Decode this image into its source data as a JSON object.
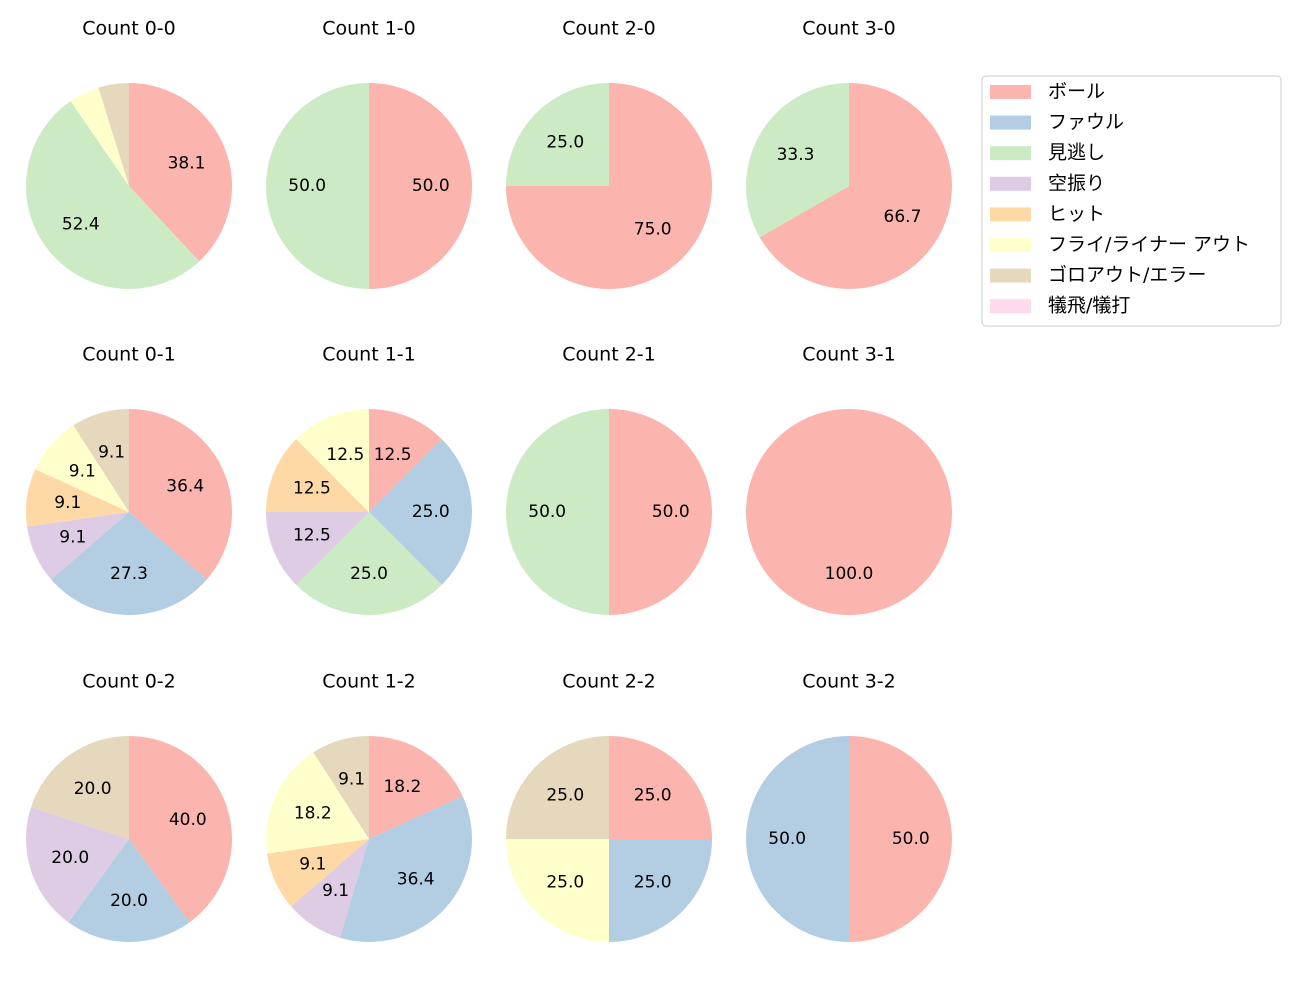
{
  "legend": {
    "labels": [
      "ボール",
      "ファウル",
      "見逃し",
      "空振り",
      "ヒット",
      "フライ/ライナー アウト",
      "ゴロアウト/エラー",
      "犠飛/犠打"
    ],
    "colors": [
      "#fbb4ae",
      "#b3cde3",
      "#ccebc5",
      "#decbe4",
      "#fed9a6",
      "#ffffcc",
      "#e5d8bd",
      "#fddaec"
    ]
  },
  "chart_data": [
    {
      "type": "pie",
      "title": "Count 0-0",
      "values": [
        38.1,
        0,
        52.4,
        0,
        0,
        4.8,
        4.8,
        0
      ],
      "value_labels": [
        "38.1",
        null,
        "52.4",
        null,
        null,
        null,
        null,
        null
      ]
    },
    {
      "type": "pie",
      "title": "Count 1-0",
      "values": [
        50,
        0,
        50,
        0,
        0,
        0,
        0,
        0
      ],
      "value_labels": [
        "50.0",
        null,
        "50.0",
        null,
        null,
        null,
        null,
        null
      ]
    },
    {
      "type": "pie",
      "title": "Count 2-0",
      "values": [
        75,
        0,
        25,
        0,
        0,
        0,
        0,
        0
      ],
      "value_labels": [
        "75.0",
        null,
        "25.0",
        null,
        null,
        null,
        null,
        null
      ]
    },
    {
      "type": "pie",
      "title": "Count 3-0",
      "values": [
        66.7,
        0,
        33.3,
        0,
        0,
        0,
        0,
        0
      ],
      "value_labels": [
        "66.7",
        null,
        "33.3",
        null,
        null,
        null,
        null,
        null
      ]
    },
    {
      "type": "pie",
      "title": "Count 0-1",
      "values": [
        36.4,
        27.3,
        0,
        9.1,
        9.1,
        9.1,
        9.1,
        0
      ],
      "value_labels": [
        "36.4",
        "27.3",
        null,
        "9.1",
        "9.1",
        "9.1",
        "9.1",
        null
      ]
    },
    {
      "type": "pie",
      "title": "Count 1-1",
      "values": [
        12.5,
        25,
        25,
        12.5,
        12.5,
        12.5,
        0,
        0
      ],
      "value_labels": [
        "12.5",
        "25.0",
        "25.0",
        "12.5",
        "12.5",
        "12.5",
        null,
        null
      ]
    },
    {
      "type": "pie",
      "title": "Count 2-1",
      "values": [
        50,
        0,
        50,
        0,
        0,
        0,
        0,
        0
      ],
      "value_labels": [
        "50.0",
        null,
        "50.0",
        null,
        null,
        null,
        null,
        null
      ]
    },
    {
      "type": "pie",
      "title": "Count 3-1",
      "values": [
        100,
        0,
        0,
        0,
        0,
        0,
        0,
        0
      ],
      "value_labels": [
        "100.0",
        null,
        null,
        null,
        null,
        null,
        null,
        null
      ]
    },
    {
      "type": "pie",
      "title": "Count 0-2",
      "values": [
        40,
        20,
        0,
        20,
        0,
        0,
        20,
        0
      ],
      "value_labels": [
        "40.0",
        "20.0",
        null,
        "20.0",
        null,
        null,
        "20.0",
        null
      ]
    },
    {
      "type": "pie",
      "title": "Count 1-2",
      "values": [
        18.2,
        36.4,
        0,
        9.1,
        9.1,
        18.2,
        9.1,
        0
      ],
      "value_labels": [
        "18.2",
        "36.4",
        null,
        "9.1",
        "9.1",
        "18.2",
        "9.1",
        null
      ]
    },
    {
      "type": "pie",
      "title": "Count 2-2",
      "values": [
        25,
        25,
        0,
        0,
        0,
        25,
        25,
        0
      ],
      "value_labels": [
        "25.0",
        "25.0",
        null,
        null,
        null,
        "25.0",
        "25.0",
        null
      ]
    },
    {
      "type": "pie",
      "title": "Count 3-2",
      "values": [
        50,
        50,
        0,
        0,
        0,
        0,
        0,
        0
      ],
      "value_labels": [
        "50.0",
        "50.0",
        null,
        null,
        null,
        null,
        null,
        null
      ]
    }
  ]
}
